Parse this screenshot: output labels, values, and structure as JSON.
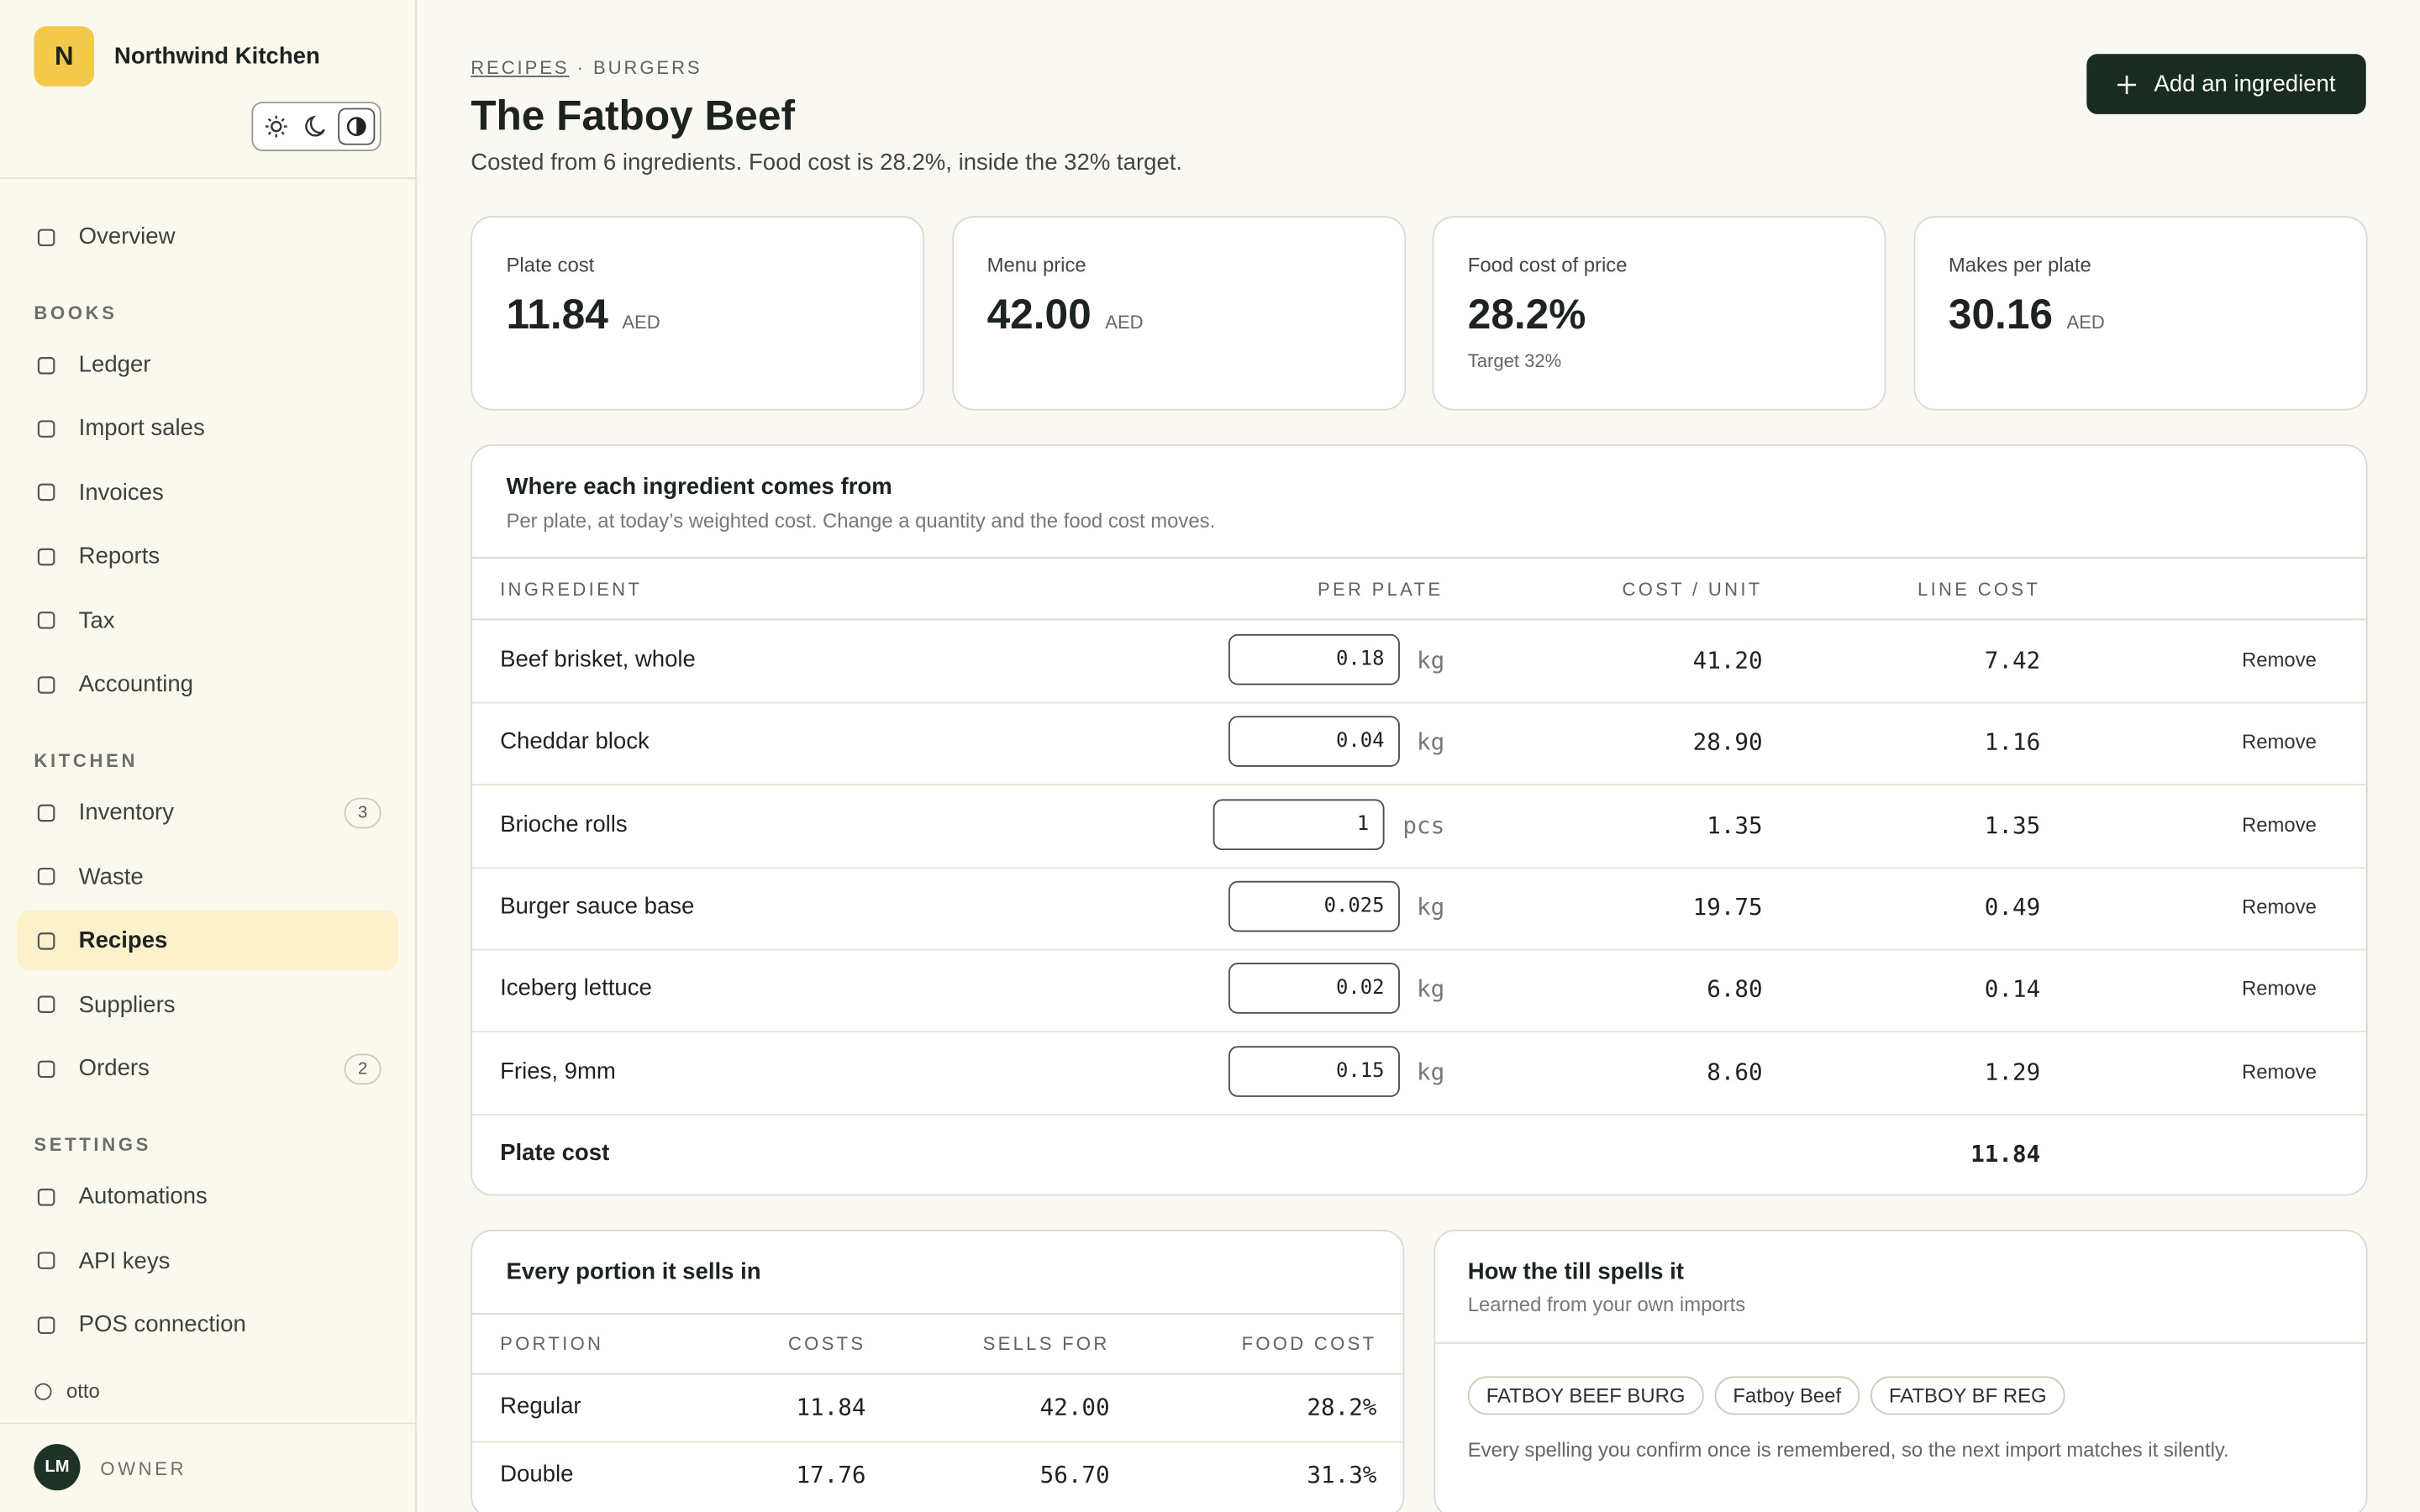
{
  "sidebar": {
    "brand": {
      "initial": "N",
      "name": "Northwind Kitchen"
    },
    "overview": "Overview",
    "sections": [
      {
        "title": "BOOKS",
        "items": [
          {
            "label": "Ledger"
          },
          {
            "label": "Import sales"
          },
          {
            "label": "Invoices"
          },
          {
            "label": "Reports"
          },
          {
            "label": "Tax"
          },
          {
            "label": "Accounting"
          }
        ]
      },
      {
        "title": "KITCHEN",
        "items": [
          {
            "label": "Inventory",
            "badge": "3"
          },
          {
            "label": "Waste"
          },
          {
            "label": "Recipes",
            "active": true
          },
          {
            "label": "Suppliers"
          },
          {
            "label": "Orders",
            "badge": "2"
          }
        ]
      },
      {
        "title": "SETTINGS",
        "items": [
          {
            "label": "Automations"
          },
          {
            "label": "API keys"
          },
          {
            "label": "POS connection"
          }
        ]
      }
    ],
    "org": "otto",
    "user": {
      "initials": "LM",
      "role": "OWNER"
    }
  },
  "header": {
    "breadcrumb": [
      "RECIPES",
      "BURGERS"
    ],
    "separator": "·",
    "title": "The Fatboy Beef",
    "subtitle": "Costed from 6 ingredients. Food cost is 28.2%, inside the 32% target.",
    "button": "Add an ingredient"
  },
  "stats": [
    {
      "label": "Plate cost",
      "value": "11.84",
      "unit": "AED"
    },
    {
      "label": "Menu price",
      "value": "42.00",
      "unit": "AED"
    },
    {
      "label": "Food cost of price",
      "value": "28.2%",
      "note": "Target 32%"
    },
    {
      "label": "Makes per plate",
      "value": "30.16",
      "unit": "AED"
    }
  ],
  "ingredients": {
    "title": "Where each ingredient comes from",
    "subtitle": "Per plate, at today’s weighted cost. Change a quantity and the food cost moves.",
    "headers": [
      "INGREDIENT",
      "PER PLATE",
      "COST / UNIT",
      "LINE COST"
    ],
    "rows": [
      {
        "name": "Beef brisket, whole",
        "qty": "0.18",
        "unit": "kg",
        "cost_unit": "41.20",
        "line_cost": "7.42",
        "action": "Remove"
      },
      {
        "name": "Cheddar block",
        "qty": "0.04",
        "unit": "kg",
        "cost_unit": "28.90",
        "line_cost": "1.16",
        "action": "Remove"
      },
      {
        "name": "Brioche rolls",
        "qty": "1",
        "unit": "pcs",
        "cost_unit": "1.35",
        "line_cost": "1.35",
        "action": "Remove"
      },
      {
        "name": "Burger sauce base",
        "qty": "0.025",
        "unit": "kg",
        "cost_unit": "19.75",
        "line_cost": "0.49",
        "action": "Remove"
      },
      {
        "name": "Iceberg lettuce",
        "qty": "0.02",
        "unit": "kg",
        "cost_unit": "6.80",
        "line_cost": "0.14",
        "action": "Remove"
      },
      {
        "name": "Fries, 9mm",
        "qty": "0.15",
        "unit": "kg",
        "cost_unit": "8.60",
        "line_cost": "1.29",
        "action": "Remove"
      }
    ],
    "total_label": "Plate cost",
    "total_value": "11.84"
  },
  "portions": {
    "title": "Every portion it sells in",
    "headers": [
      "PORTION",
      "COSTS",
      "SELLS FOR",
      "FOOD COST"
    ],
    "rows": [
      [
        "Regular",
        "11.84",
        "42.00",
        "28.2%"
      ],
      [
        "Double",
        "17.76",
        "56.70",
        "31.3%"
      ]
    ]
  },
  "till": {
    "title": "How the till spells it",
    "subtitle": "Learned from your own imports",
    "tags": [
      "FATBOY BEEF BURG",
      "Fatboy Beef",
      "FATBOY BF REG"
    ],
    "note": "Every spelling you confirm once is remembered, so the next import matches it silently."
  }
}
